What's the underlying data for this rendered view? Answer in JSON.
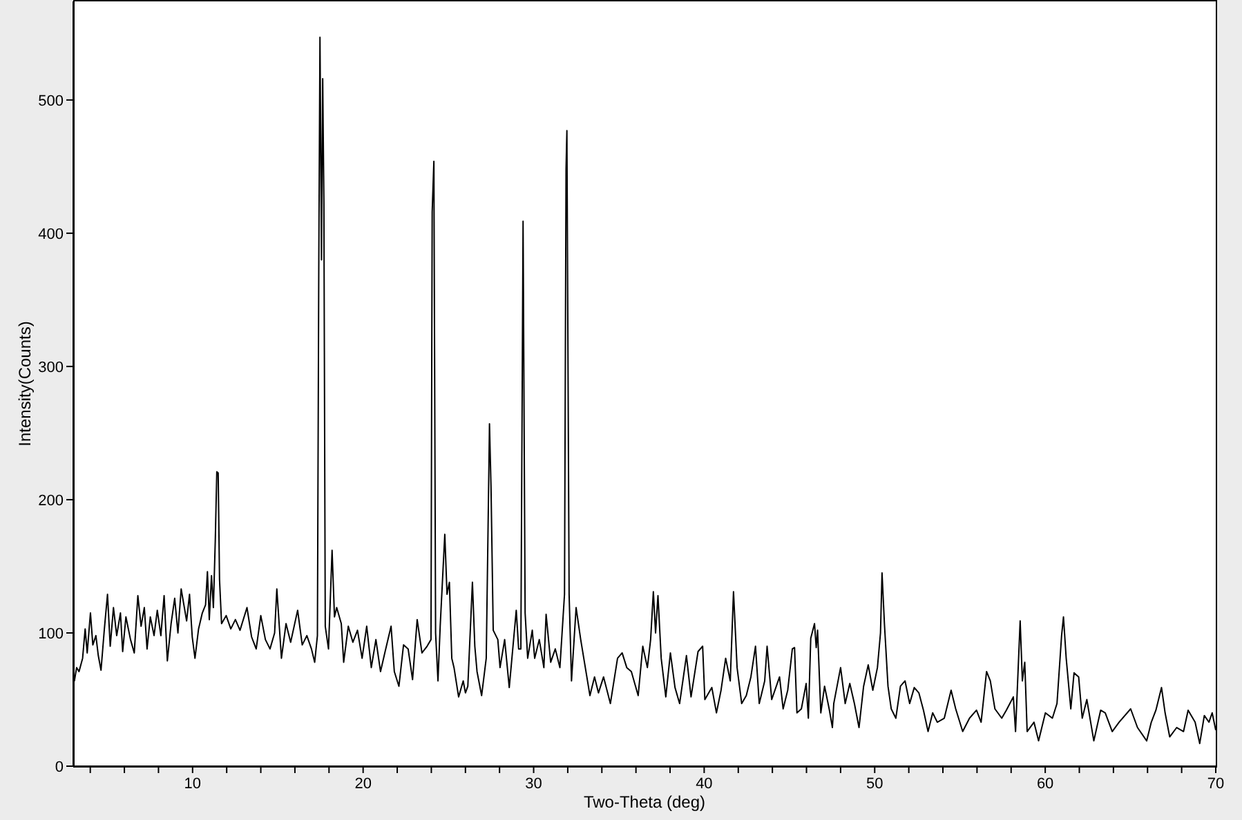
{
  "chart_data": {
    "type": "line",
    "xlabel": "Two-Theta (deg)",
    "ylabel": "Intensity(Counts)",
    "x": [
      3.0,
      3.07,
      3.2,
      3.34,
      3.55,
      3.7,
      3.82,
      4.01,
      4.15,
      4.33,
      4.47,
      4.63,
      4.82,
      5.01,
      5.17,
      5.36,
      5.55,
      5.77,
      5.9,
      6.09,
      6.36,
      6.58,
      6.79,
      6.98,
      7.17,
      7.33,
      7.52,
      7.74,
      7.93,
      8.14,
      8.33,
      8.52,
      8.74,
      8.95,
      9.14,
      9.33,
      9.49,
      9.65,
      9.82,
      9.98,
      10.14,
      10.35,
      10.57,
      10.76,
      10.87,
      10.98,
      11.11,
      11.22,
      11.33,
      11.42,
      11.5,
      11.58,
      11.7,
      11.97,
      12.24,
      12.51,
      12.78,
      13.19,
      13.46,
      13.73,
      14.0,
      14.27,
      14.54,
      14.81,
      14.94,
      15.21,
      15.48,
      15.75,
      16.16,
      16.43,
      16.7,
      16.97,
      17.16,
      17.32,
      17.4,
      17.47,
      17.56,
      17.63,
      17.7,
      17.78,
      17.97,
      18.18,
      18.32,
      18.45,
      18.72,
      18.86,
      19.13,
      19.4,
      19.67,
      19.94,
      20.21,
      20.48,
      20.75,
      21.02,
      21.29,
      21.64,
      21.83,
      22.1,
      22.37,
      22.64,
      22.9,
      23.17,
      23.45,
      23.75,
      23.98,
      24.05,
      24.15,
      24.25,
      24.39,
      24.52,
      24.79,
      24.92,
      25.06,
      25.2,
      25.33,
      25.6,
      25.87,
      26.0,
      26.14,
      26.41,
      26.55,
      26.68,
      26.95,
      27.22,
      27.35,
      27.41,
      27.5,
      27.63,
      27.9,
      28.03,
      28.3,
      28.57,
      28.98,
      29.12,
      29.25,
      29.38,
      29.5,
      29.65,
      29.92,
      30.06,
      30.33,
      30.6,
      30.73,
      31.0,
      31.27,
      31.54,
      31.81,
      31.9,
      31.95,
      32.08,
      32.22,
      32.49,
      32.76,
      33.03,
      33.3,
      33.57,
      33.8,
      34.1,
      34.5,
      34.92,
      35.19,
      35.46,
      35.73,
      36.13,
      36.4,
      36.67,
      36.86,
      37.02,
      37.15,
      37.29,
      37.48,
      37.75,
      38.02,
      38.29,
      38.56,
      38.96,
      39.23,
      39.64,
      39.91,
      40.04,
      40.45,
      40.72,
      40.99,
      41.26,
      41.53,
      41.72,
      41.93,
      42.2,
      42.47,
      42.74,
      43.01,
      43.23,
      43.55,
      43.69,
      43.96,
      44.23,
      44.42,
      44.63,
      44.9,
      45.17,
      45.3,
      45.44,
      45.7,
      45.98,
      46.11,
      46.25,
      46.47,
      46.57,
      46.65,
      46.84,
      47.06,
      47.33,
      47.52,
      47.6,
      48.0,
      48.27,
      48.54,
      48.81,
      49.08,
      49.35,
      49.62,
      49.89,
      50.16,
      50.34,
      50.43,
      50.57,
      50.78,
      50.97,
      51.24,
      51.51,
      51.78,
      52.05,
      52.32,
      52.59,
      52.86,
      53.13,
      53.4,
      53.67,
      54.08,
      54.48,
      54.75,
      55.16,
      55.56,
      55.97,
      56.24,
      56.56,
      56.78,
      57.05,
      57.45,
      57.72,
      58.13,
      58.26,
      58.53,
      58.66,
      58.8,
      58.94,
      59.34,
      59.61,
      60.01,
      60.42,
      60.69,
      60.96,
      61.07,
      61.23,
      61.5,
      61.69,
      61.96,
      62.17,
      62.44,
      62.85,
      63.25,
      63.52,
      63.93,
      64.33,
      65.01,
      65.41,
      65.95,
      66.22,
      66.49,
      66.82,
      67.03,
      67.3,
      67.71,
      68.11,
      68.38,
      68.79,
      69.06,
      69.33,
      69.6,
      69.79,
      70.0
    ],
    "series": [
      {
        "color": "#000000",
        "values": [
          64,
          64,
          74,
          71,
          81,
          103,
          85,
          115,
          91,
          98,
          83,
          72,
          102,
          129,
          90,
          119,
          98,
          115,
          86,
          112,
          95,
          85,
          128,
          105,
          119,
          88,
          112,
          98,
          117,
          98,
          128,
          79,
          107,
          126,
          100,
          133,
          121,
          109,
          129,
          97,
          81,
          103,
          115,
          121,
          146,
          110,
          143,
          119,
          169,
          221,
          220,
          140,
          107,
          113,
          103,
          110,
          102,
          119,
          97,
          88,
          113,
          95,
          88,
          100,
          133,
          81,
          107,
          93,
          117,
          91,
          98,
          88,
          78,
          98,
          375,
          547,
          380,
          516,
          423,
          105,
          88,
          162,
          112,
          119,
          107,
          78,
          105,
          93,
          102,
          81,
          105,
          74,
          95,
          71,
          86,
          105,
          71,
          60,
          91,
          88,
          65,
          110,
          85,
          90,
          95,
          416,
          454,
          100,
          64,
          105,
          174,
          129,
          138,
          81,
          74,
          52,
          64,
          55,
          60,
          138,
          90,
          71,
          53,
          81,
          200,
          257,
          210,
          102,
          95,
          74,
          95,
          59,
          117,
          88,
          88,
          409,
          115,
          81,
          102,
          81,
          95,
          74,
          114,
          78,
          88,
          74,
          129,
          448,
          477,
          129,
          64,
          119,
          95,
          74,
          53,
          67,
          55,
          67,
          47,
          81,
          85,
          74,
          71,
          53,
          90,
          74,
          95,
          131,
          100,
          128,
          81,
          52,
          85,
          59,
          47,
          83,
          52,
          86,
          90,
          50,
          59,
          40,
          57,
          81,
          64,
          131,
          74,
          47,
          53,
          67,
          90,
          47,
          64,
          90,
          50,
          60,
          67,
          43,
          57,
          88,
          89,
          40,
          43,
          62,
          36,
          96,
          107,
          89,
          102,
          40,
          60,
          43,
          29,
          47,
          74,
          47,
          62,
          47,
          29,
          60,
          76,
          57,
          74,
          100,
          145,
          107,
          60,
          43,
          36,
          60,
          64,
          47,
          59,
          55,
          42,
          26,
          40,
          33,
          36,
          57,
          43,
          26,
          36,
          42,
          33,
          71,
          64,
          43,
          36,
          42,
          52,
          26,
          109,
          64,
          78,
          26,
          33,
          19,
          40,
          36,
          47,
          98,
          112,
          81,
          43,
          70,
          67,
          36,
          50,
          19,
          42,
          40,
          26,
          33,
          43,
          29,
          19,
          33,
          42,
          59,
          40,
          22,
          29,
          26,
          42,
          33,
          17,
          38,
          33,
          40,
          27
        ]
      }
    ],
    "xlim": [
      3,
      70
    ],
    "ylim": [
      0,
      574
    ],
    "xticks": [
      {
        "value": 4,
        "label": null
      },
      {
        "value": 6,
        "label": null
      },
      {
        "value": 8,
        "label": null
      },
      10,
      {
        "value": 12,
        "label": null
      },
      {
        "value": 14,
        "label": null
      },
      {
        "value": 16,
        "label": null
      },
      {
        "value": 18,
        "label": null
      },
      20,
      {
        "value": 22,
        "label": null
      },
      {
        "value": 24,
        "label": null
      },
      {
        "value": 26,
        "label": null
      },
      {
        "value": 28,
        "label": null
      },
      30,
      {
        "value": 32,
        "label": null
      },
      {
        "value": 34,
        "label": null
      },
      {
        "value": 36,
        "label": null
      },
      {
        "value": 38,
        "label": null
      },
      40,
      {
        "value": 42,
        "label": null
      },
      {
        "value": 44,
        "label": null
      },
      {
        "value": 46,
        "label": null
      },
      {
        "value": 48,
        "label": null
      },
      50,
      {
        "value": 52,
        "label": null
      },
      {
        "value": 54,
        "label": null
      },
      {
        "value": 56,
        "label": null
      },
      {
        "value": 58,
        "label": null
      },
      60,
      {
        "value": 62,
        "label": null
      },
      {
        "value": 64,
        "label": null
      },
      {
        "value": 66,
        "label": null
      },
      {
        "value": 68,
        "label": null
      },
      70
    ],
    "yticks": [
      0,
      100,
      200,
      300,
      400,
      500
    ],
    "marker": "none",
    "line_style": "solid"
  }
}
